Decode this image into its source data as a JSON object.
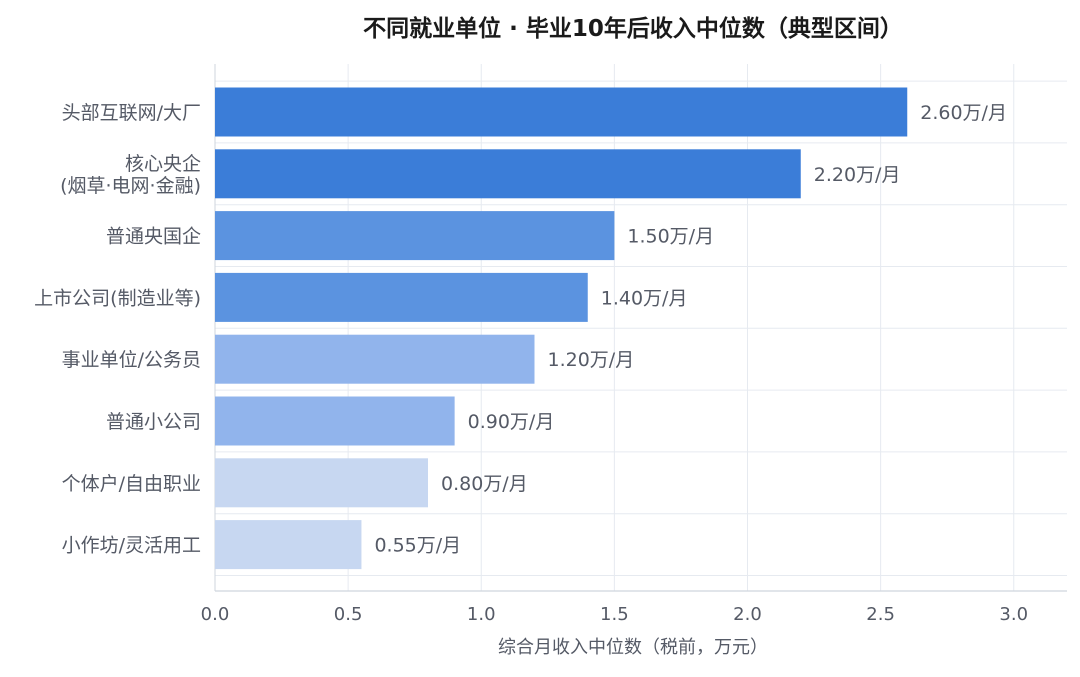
{
  "chart_data": {
    "type": "bar",
    "orientation": "horizontal",
    "title": "不同就业单位 · 毕业10年后收入中位数（典型区间）",
    "xlabel": "综合月收入中位数（税前，万元）",
    "ylabel": "",
    "xlim": [
      0,
      3.2
    ],
    "xticks": [
      "0.0",
      "0.5",
      "1.0",
      "1.5",
      "2.0",
      "2.5",
      "3.0"
    ],
    "grid": true,
    "categories": [
      [
        "头部互联网/大厂"
      ],
      [
        "核心央企",
        "(烟草·电网·金融)"
      ],
      [
        "普通央国企"
      ],
      [
        "上市公司(制造业等)"
      ],
      [
        "事业单位/公务员"
      ],
      [
        "普通小公司"
      ],
      [
        "个体户/自由职业"
      ],
      [
        "小作坊/灵活用工"
      ]
    ],
    "values": [
      2.6,
      2.2,
      1.5,
      1.4,
      1.2,
      0.9,
      0.8,
      0.55
    ],
    "value_labels": [
      "2.60万/月",
      "2.20万/月",
      "1.50万/月",
      "1.40万/月",
      "1.20万/月",
      "0.90万/月",
      "0.80万/月",
      "0.55万/月"
    ],
    "bar_colors": [
      "#3b7dd8",
      "#3b7dd8",
      "#5b93e0",
      "#5b93e0",
      "#91b4ec",
      "#91b4ec",
      "#c7d7f1",
      "#c7d7f1"
    ]
  },
  "colors": {
    "title": "#1a1a1a",
    "axis_text": "#555a66",
    "grid": "#e6eaf0",
    "axis_line": "#cfd5de"
  }
}
